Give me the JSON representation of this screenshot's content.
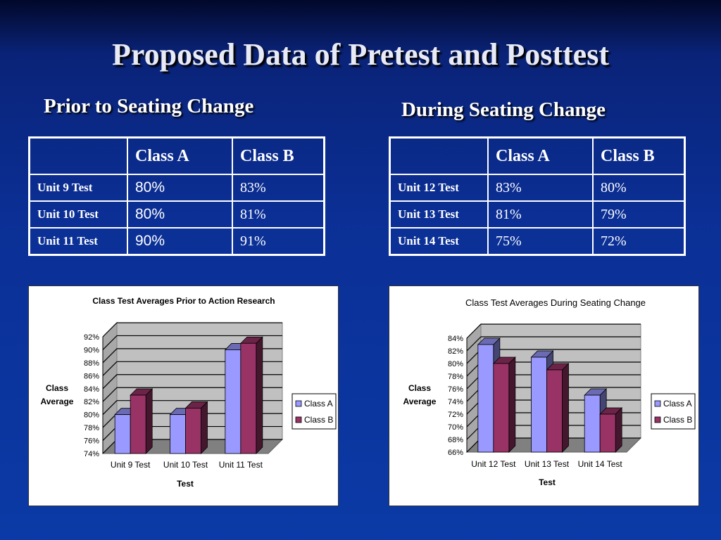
{
  "slide": {
    "title": "Proposed Data of Pretest and Posttest"
  },
  "left": {
    "heading": "Prior to Seating Change",
    "table": {
      "headers": [
        "",
        "Class A",
        "Class B"
      ],
      "rows": [
        {
          "label": "Unit 9 Test",
          "a": "80%",
          "b": "83%"
        },
        {
          "label": "Unit 10 Test",
          "a": "80%",
          "b": "81%"
        },
        {
          "label": "Unit 11 Test",
          "a": "90%",
          "b": "91%"
        }
      ]
    }
  },
  "right": {
    "heading": "During Seating Change",
    "table": {
      "headers": [
        "",
        "Class A",
        "Class B"
      ],
      "rows": [
        {
          "label": "Unit 12 Test",
          "a": "83%",
          "b": "80%"
        },
        {
          "label": "Unit 13 Test",
          "a": "81%",
          "b": "79%"
        },
        {
          "label": "Unit 14 Test",
          "a": "75%",
          "b": "72%"
        }
      ]
    }
  },
  "colors": {
    "class_a": "#9999ff",
    "class_b": "#993366",
    "wall": "#c0c0c0",
    "background_top": "#02082a",
    "background_bottom": "#0b3aa6"
  },
  "chart_data": [
    {
      "type": "bar",
      "title": "Class Test Averages Prior to Action Research",
      "xlabel": "Test",
      "ylabel_lines": [
        "Class",
        "Average"
      ],
      "categories": [
        "Unit 9 Test",
        "Unit 10 Test",
        "Unit 11 Test"
      ],
      "series": [
        {
          "name": "Class A",
          "values": [
            80,
            80,
            90
          ]
        },
        {
          "name": "Class B",
          "values": [
            83,
            81,
            91
          ]
        }
      ],
      "ylim": [
        74,
        92
      ],
      "yticks": [
        "74%",
        "76%",
        "78%",
        "80%",
        "82%",
        "84%",
        "86%",
        "88%",
        "90%",
        "92%"
      ],
      "grid": true,
      "legend": "right",
      "style_3d": true
    },
    {
      "type": "bar",
      "title": "Class Test Averages During Seating Change",
      "xlabel": "Test",
      "ylabel_lines": [
        "Class",
        "Average"
      ],
      "categories": [
        "Unit 12 Test",
        "Unit 13 Test",
        "Unit 14 Test"
      ],
      "series": [
        {
          "name": "Class A",
          "values": [
            83,
            81,
            75
          ]
        },
        {
          "name": "Class B",
          "values": [
            80,
            79,
            72
          ]
        }
      ],
      "ylim": [
        66,
        84
      ],
      "yticks": [
        "66%",
        "68%",
        "70%",
        "72%",
        "74%",
        "76%",
        "78%",
        "80%",
        "82%",
        "84%"
      ],
      "grid": true,
      "legend": "right",
      "style_3d": true
    }
  ]
}
